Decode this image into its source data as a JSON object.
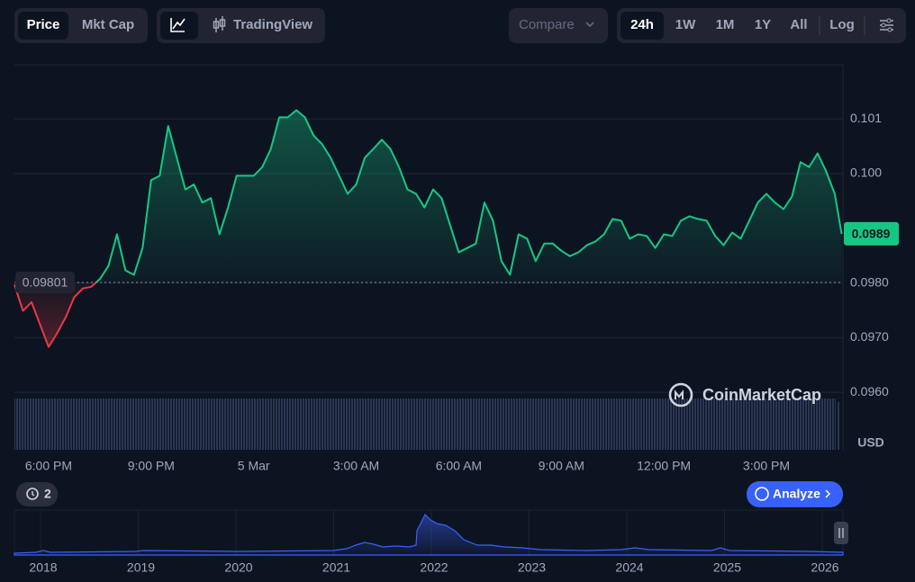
{
  "toolbar": {
    "tabs": [
      "Price",
      "Mkt Cap"
    ],
    "chart_mode": "TradingView",
    "compare": "Compare",
    "ranges": [
      "24h",
      "1W",
      "1M",
      "1Y",
      "All"
    ],
    "log": "Log"
  },
  "history_count": 2,
  "analyze": "Analyze",
  "watermark": "CoinMarketCap",
  "navigator": {
    "years": [
      2018,
      2019,
      2020,
      2021,
      2022,
      2023,
      2024,
      2025,
      2026
    ]
  },
  "chart_data": {
    "type": "line",
    "ylabel": "USD",
    "x": [
      17,
      17.25,
      17.5,
      17.75,
      18,
      18.25,
      18.5,
      18.75,
      19,
      19.25,
      19.5,
      19.75,
      20,
      20.25,
      20.5,
      20.75,
      21,
      21.25,
      21.5,
      21.75,
      22,
      22.25,
      22.5,
      22.75,
      23,
      23.25,
      23.5,
      23.75,
      24,
      24.25,
      24.5,
      24.75,
      25,
      25.25,
      25.5,
      25.75,
      26,
      26.25,
      26.5,
      26.75,
      27,
      27.25,
      27.5,
      27.75,
      28,
      28.25,
      28.5,
      28.75,
      29,
      29.25,
      29.5,
      29.75,
      30,
      30.25,
      30.5,
      30.75,
      31,
      31.25,
      31.5,
      31.75,
      32,
      32.25,
      32.5,
      32.75,
      33,
      33.25,
      33.5,
      33.75,
      34,
      34.25,
      34.5,
      34.75,
      35,
      35.25,
      35.5,
      35.75,
      36,
      36.25,
      36.5,
      36.75,
      37,
      37.25,
      37.5,
      37.75,
      38,
      38.25,
      38.5,
      38.75,
      39,
      39.25,
      39.5,
      39.75,
      40,
      40.25,
      40.5,
      40.75,
      41,
      41.2
    ],
    "values": [
      0.09797,
      0.09749,
      0.09765,
      0.09724,
      0.09683,
      0.09708,
      0.09737,
      0.09774,
      0.0979,
      0.09793,
      0.09807,
      0.09831,
      0.09889,
      0.09823,
      0.09815,
      0.09864,
      0.09988,
      0.09996,
      0.10087,
      0.10029,
      0.09971,
      0.0998,
      0.09947,
      0.09955,
      0.09889,
      0.09938,
      0.09996,
      0.09996,
      0.09996,
      0.10012,
      0.10045,
      0.10103,
      0.10103,
      0.10116,
      0.10103,
      0.1007,
      0.10054,
      0.10029,
      0.09996,
      0.09963,
      0.0998,
      0.10029,
      0.10045,
      0.10062,
      0.10045,
      0.10012,
      0.09971,
      0.09963,
      0.09938,
      0.09971,
      0.09955,
      0.09905,
      0.09856,
      0.09864,
      0.09872,
      0.09947,
      0.09914,
      0.0984,
      0.09815,
      0.09889,
      0.09881,
      0.0984,
      0.09872,
      0.09872,
      0.09859,
      0.09849,
      0.09856,
      0.09869,
      0.09876,
      0.09889,
      0.09917,
      0.09914,
      0.09881,
      0.09889,
      0.09886,
      0.09864,
      0.09889,
      0.09886,
      0.09914,
      0.09922,
      0.09917,
      0.09914,
      0.09886,
      0.09869,
      0.09892,
      0.09881,
      0.09914,
      0.09947,
      0.09963,
      0.09947,
      0.09935,
      0.09958,
      0.10021,
      0.10012,
      0.10037,
      0.10004,
      0.09963,
      0.0989
    ],
    "reference_value": 0.09801,
    "last_value": 0.0989,
    "color_up": "#16c784",
    "color_down": "#ea3943",
    "xlim": [
      17,
      41.24
    ],
    "ylim": [
      0.09495,
      0.10199
    ],
    "xticks": [
      {
        "value": 18,
        "label": "6:00 PM"
      },
      {
        "value": 21,
        "label": "9:00 PM"
      },
      {
        "value": 24,
        "label": "5 Mar"
      },
      {
        "value": 27,
        "label": "3:00 AM"
      },
      {
        "value": 30,
        "label": "6:00 AM"
      },
      {
        "value": 33,
        "label": "9:00 AM"
      },
      {
        "value": 36,
        "label": "12:00 PM"
      },
      {
        "value": 39,
        "label": "3:00 PM"
      }
    ],
    "yticks": [
      0.101,
      {
        "value": 0.1,
        "label": "0.100"
      },
      {
        "value": 0.098,
        "label": "0.0980"
      },
      {
        "value": 0.097,
        "label": "0.0970"
      },
      {
        "value": 0.096,
        "label": "0.0960"
      }
    ],
    "grid": true
  }
}
